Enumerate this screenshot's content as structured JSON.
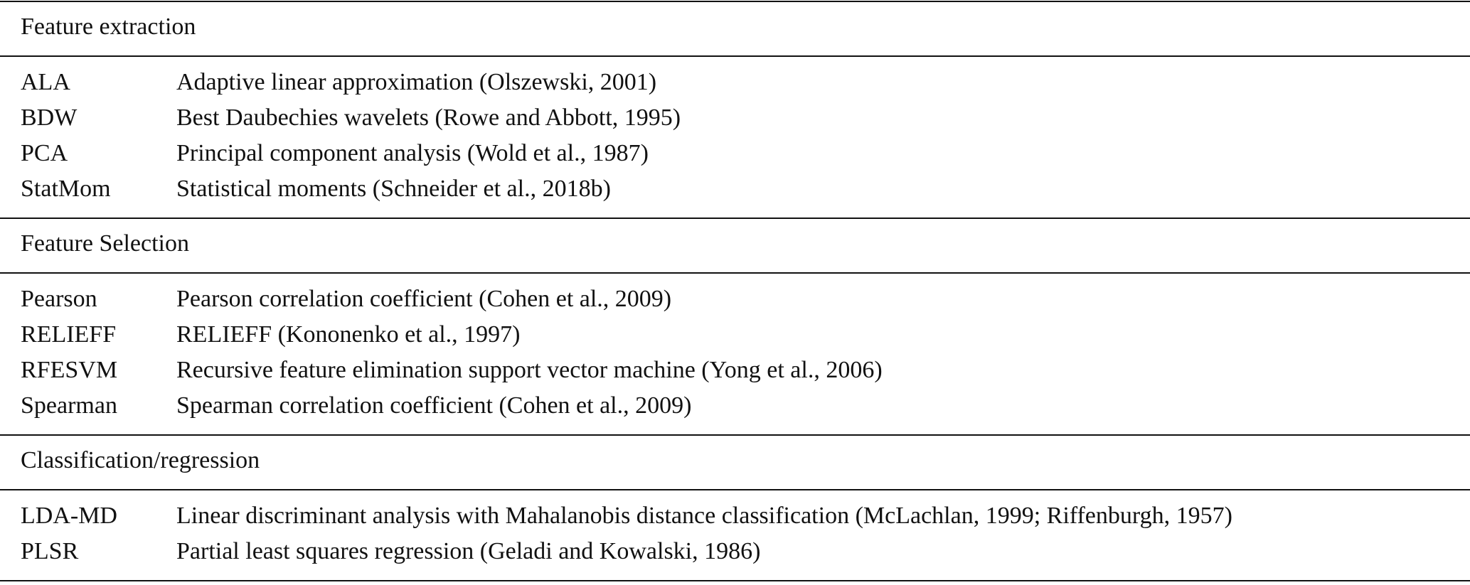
{
  "sections": [
    {
      "title": "Feature extraction",
      "rows": [
        [
          "ALA",
          "Adaptive linear approximation (Olszewski, 2001)"
        ],
        [
          "BDW",
          "Best Daubechies wavelets (Rowe and Abbott, 1995)"
        ],
        [
          "PCA",
          "Principal component analysis (Wold et al., 1987)"
        ],
        [
          "StatMom",
          "Statistical moments (Schneider et al., 2018b)"
        ]
      ]
    },
    {
      "title": "Feature Selection",
      "rows": [
        [
          "Pearson",
          "Pearson correlation coefficient (Cohen et al., 2009)"
        ],
        [
          "RELIEFF",
          "RELIEFF (Kononenko et al., 1997)"
        ],
        [
          "RFESVM",
          "Recursive feature elimination support vector machine (Yong et al., 2006)"
        ],
        [
          "Spearman",
          "Spearman correlation coefficient (Cohen et al., 2009)"
        ]
      ]
    },
    {
      "title": "Classification/regression",
      "rows": [
        [
          "LDA-MD",
          "Linear discriminant analysis with Mahalanobis distance classification (McLachlan, 1999; Riffenburgh, 1957)"
        ],
        [
          "PLSR",
          "Partial least squares regression (Geladi and Kowalski, 1986)"
        ]
      ]
    }
  ]
}
